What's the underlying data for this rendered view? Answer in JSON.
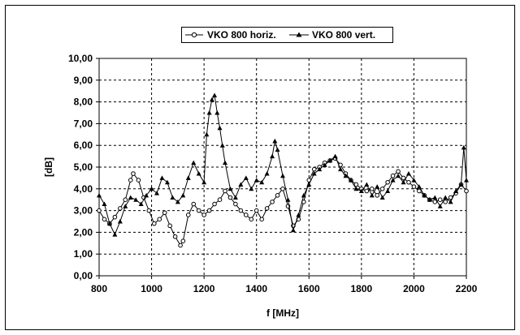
{
  "chart_data": {
    "type": "line",
    "xlabel": "f [MHz]",
    "ylabel": "[dB]",
    "xlim": [
      800,
      2200
    ],
    "ylim": [
      0,
      10
    ],
    "grid": true,
    "legend_position": "top",
    "x_ticks": [
      "800",
      "1000",
      "1200",
      "1400",
      "1600",
      "1800",
      "2000",
      "2200"
    ],
    "y_ticks": [
      "0,00",
      "1,00",
      "2,00",
      "3,00",
      "4,00",
      "5,00",
      "6,00",
      "7,00",
      "8,00",
      "9,00",
      "10,00"
    ],
    "series": [
      {
        "name": "VKO 800 horiz.",
        "marker": "open-circle",
        "color": "#000000",
        "x": [
          800,
          820,
          840,
          860,
          880,
          900,
          920,
          930,
          950,
          970,
          990,
          1010,
          1030,
          1050,
          1070,
          1090,
          1110,
          1120,
          1140,
          1160,
          1180,
          1200,
          1220,
          1240,
          1260,
          1280,
          1300,
          1320,
          1340,
          1360,
          1380,
          1400,
          1420,
          1440,
          1460,
          1480,
          1500,
          1520,
          1540,
          1560,
          1580,
          1600,
          1620,
          1640,
          1660,
          1680,
          1700,
          1720,
          1740,
          1760,
          1780,
          1800,
          1820,
          1840,
          1860,
          1880,
          1900,
          1920,
          1940,
          1960,
          1980,
          2000,
          2020,
          2040,
          2060,
          2080,
          2100,
          2120,
          2140,
          2160,
          2180,
          2200
        ],
        "y": [
          3.0,
          2.6,
          2.4,
          2.7,
          3.1,
          3.5,
          4.4,
          4.7,
          4.4,
          3.6,
          3.0,
          2.4,
          2.6,
          2.9,
          2.3,
          1.8,
          1.4,
          1.6,
          2.8,
          3.3,
          3.0,
          2.8,
          3.0,
          3.3,
          3.5,
          3.9,
          3.6,
          3.3,
          3.0,
          2.8,
          2.6,
          3.0,
          2.6,
          3.1,
          3.4,
          3.7,
          4.0,
          3.2,
          2.3,
          2.6,
          3.4,
          4.4,
          4.9,
          5.0,
          5.2,
          5.3,
          5.4,
          5.1,
          4.7,
          4.4,
          4.2,
          4.0,
          3.9,
          4.0,
          3.7,
          4.0,
          4.3,
          4.6,
          4.8,
          4.5,
          4.3,
          4.1,
          3.9,
          3.7,
          3.5,
          3.4,
          3.5,
          3.4,
          3.6,
          3.8,
          4.2,
          3.9
        ]
      },
      {
        "name": "VKO 800 vert.",
        "marker": "filled-triangle",
        "color": "#000000",
        "x": [
          800,
          820,
          840,
          860,
          880,
          900,
          920,
          940,
          960,
          980,
          1000,
          1020,
          1040,
          1060,
          1080,
          1100,
          1120,
          1140,
          1160,
          1180,
          1200,
          1210,
          1220,
          1230,
          1240,
          1250,
          1260,
          1270,
          1280,
          1300,
          1320,
          1340,
          1360,
          1380,
          1400,
          1420,
          1440,
          1460,
          1470,
          1480,
          1500,
          1520,
          1540,
          1560,
          1580,
          1600,
          1620,
          1640,
          1660,
          1680,
          1700,
          1720,
          1740,
          1760,
          1780,
          1800,
          1820,
          1840,
          1860,
          1880,
          1900,
          1920,
          1940,
          1960,
          1980,
          2000,
          2020,
          2040,
          2060,
          2080,
          2100,
          2120,
          2140,
          2160,
          2180,
          2190,
          2200
        ],
        "y": [
          3.7,
          3.3,
          2.4,
          1.9,
          2.5,
          3.2,
          3.6,
          3.5,
          3.3,
          3.7,
          4.0,
          3.8,
          4.5,
          4.3,
          3.6,
          3.4,
          3.7,
          4.5,
          5.2,
          4.7,
          4.3,
          6.5,
          7.5,
          8.1,
          8.3,
          7.5,
          6.8,
          6.0,
          5.2,
          4.0,
          3.6,
          4.2,
          4.5,
          4.0,
          4.4,
          4.3,
          4.7,
          5.5,
          6.2,
          5.8,
          4.6,
          3.5,
          2.1,
          2.8,
          3.7,
          4.2,
          4.7,
          4.9,
          5.1,
          5.3,
          5.5,
          4.9,
          4.6,
          4.4,
          4.0,
          3.9,
          4.2,
          3.7,
          4.1,
          3.6,
          3.9,
          4.4,
          4.6,
          4.3,
          4.7,
          4.4,
          4.1,
          3.7,
          3.5,
          3.6,
          3.2,
          3.6,
          3.4,
          3.9,
          4.2,
          5.9,
          4.4
        ]
      }
    ]
  }
}
